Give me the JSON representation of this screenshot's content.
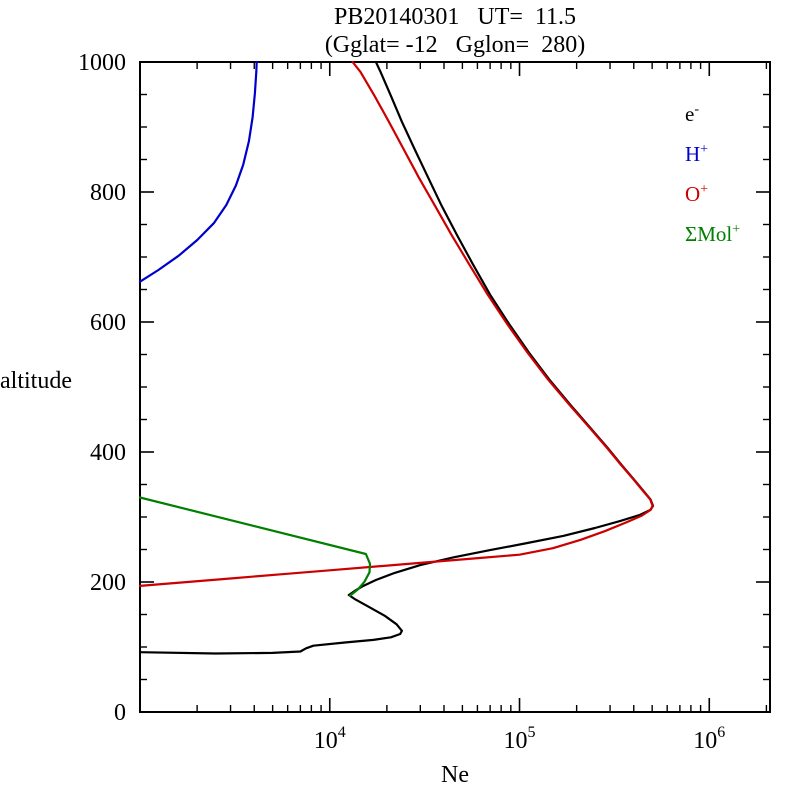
{
  "chart_data": {
    "type": "line",
    "title": "PB20140301   UT=  11.5",
    "subtitle": "(Gglat= -12   Gglon=  280)",
    "xlabel": "Ne",
    "ylabel": "altitude",
    "xscale": "log",
    "xlim": [
      1000,
      2089296
    ],
    "ylim": [
      0,
      1000
    ],
    "grid": false,
    "legend_position": "inside-top-right",
    "xticks": [
      {
        "value": 10000,
        "base": "10",
        "sup": "4"
      },
      {
        "value": 100000,
        "base": "10",
        "sup": "5"
      },
      {
        "value": 1000000,
        "base": "10",
        "sup": "6"
      }
    ],
    "yticks": [
      0,
      200,
      400,
      600,
      800,
      1000
    ],
    "ytick_labels": [
      "0",
      "200",
      "400",
      "600",
      "800",
      "1000"
    ],
    "yminor_step": 50,
    "series": [
      {
        "name": "e-",
        "label_base": "e",
        "label_sup": "-",
        "color": "#000000",
        "points": [
          [
            1000,
            92
          ],
          [
            2500,
            90
          ],
          [
            5000,
            91
          ],
          [
            7000,
            93
          ],
          [
            7500,
            98
          ],
          [
            8200,
            102
          ],
          [
            12000,
            107
          ],
          [
            17000,
            111
          ],
          [
            21000,
            115
          ],
          [
            23500,
            120
          ],
          [
            24000,
            125
          ],
          [
            22500,
            135
          ],
          [
            19500,
            148
          ],
          [
            16000,
            162
          ],
          [
            13500,
            174
          ],
          [
            12600,
            180
          ],
          [
            13500,
            186
          ],
          [
            14800,
            193
          ],
          [
            17500,
            203
          ],
          [
            22000,
            214
          ],
          [
            30000,
            226
          ],
          [
            45000,
            238
          ],
          [
            70000,
            249
          ],
          [
            110000,
            260
          ],
          [
            170000,
            271
          ],
          [
            250000,
            283
          ],
          [
            340000,
            294
          ],
          [
            430000,
            303
          ],
          [
            490000,
            311
          ],
          [
            505000,
            317
          ],
          [
            490000,
            327
          ],
          [
            450000,
            340
          ],
          [
            400000,
            358
          ],
          [
            345000,
            380
          ],
          [
            290000,
            407
          ],
          [
            235000,
            438
          ],
          [
            185000,
            473
          ],
          [
            143000,
            512
          ],
          [
            112000,
            553
          ],
          [
            88000,
            597
          ],
          [
            70000,
            642
          ],
          [
            57000,
            688
          ],
          [
            47000,
            733
          ],
          [
            39000,
            778
          ],
          [
            33000,
            822
          ],
          [
            28000,
            866
          ],
          [
            24000,
            908
          ],
          [
            21000,
            948
          ],
          [
            18500,
            985
          ],
          [
            17500,
            1000
          ]
        ]
      },
      {
        "name": "H+",
        "label_base": "H",
        "label_sup": "+",
        "color": "#0000cc",
        "points": [
          [
            1000,
            662
          ],
          [
            1250,
            680
          ],
          [
            1600,
            702
          ],
          [
            2000,
            726
          ],
          [
            2450,
            752
          ],
          [
            2850,
            780
          ],
          [
            3200,
            810
          ],
          [
            3500,
            842
          ],
          [
            3750,
            878
          ],
          [
            3920,
            915
          ],
          [
            4030,
            952
          ],
          [
            4100,
            985
          ],
          [
            4120,
            1000
          ]
        ]
      },
      {
        "name": "O+",
        "label_base": "O",
        "label_sup": "+",
        "color": "#cc0000",
        "points": [
          [
            1000,
            194
          ],
          [
            1780,
            200
          ],
          [
            3160,
            206
          ],
          [
            5620,
            212
          ],
          [
            10000,
            218
          ],
          [
            17800,
            224
          ],
          [
            31600,
            230
          ],
          [
            56200,
            236
          ],
          [
            100000,
            242
          ],
          [
            150000,
            252
          ],
          [
            210000,
            265
          ],
          [
            280000,
            278
          ],
          [
            360000,
            291
          ],
          [
            440000,
            302
          ],
          [
            490000,
            311
          ],
          [
            503000,
            317
          ],
          [
            488000,
            327
          ],
          [
            448000,
            340
          ],
          [
            398000,
            358
          ],
          [
            343000,
            380
          ],
          [
            288000,
            407
          ],
          [
            233000,
            438
          ],
          [
            183000,
            473
          ],
          [
            141000,
            512
          ],
          [
            110000,
            553
          ],
          [
            86000,
            597
          ],
          [
            68000,
            642
          ],
          [
            54500,
            688
          ],
          [
            44000,
            733
          ],
          [
            36000,
            778
          ],
          [
            29500,
            822
          ],
          [
            24500,
            866
          ],
          [
            20500,
            908
          ],
          [
            17200,
            948
          ],
          [
            14500,
            985
          ],
          [
            13200,
            1000
          ]
        ]
      },
      {
        "name": "SMol+",
        "label_base": "ΣMol",
        "label_sup": "+",
        "color": "#007f00",
        "points": [
          [
            1000,
            330
          ],
          [
            15500,
            243
          ],
          [
            16300,
            228
          ],
          [
            16200,
            215
          ],
          [
            15200,
            200
          ],
          [
            14000,
            188
          ],
          [
            12800,
            179
          ]
        ]
      }
    ]
  }
}
